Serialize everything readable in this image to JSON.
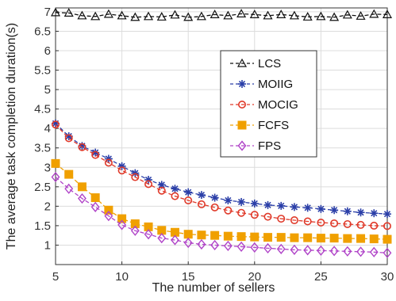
{
  "chart_data": {
    "type": "line",
    "xlabel": "The number of sellers",
    "ylabel": "The average task completion duration(s)",
    "xlim": [
      5,
      30
    ],
    "ylim": [
      0.5,
      7.1
    ],
    "xticks": [
      5,
      10,
      15,
      20,
      25,
      30
    ],
    "yticks": [
      1,
      1.5,
      2,
      2.5,
      3,
      3.5,
      4,
      4.5,
      5,
      5.5,
      6,
      6.5,
      7
    ],
    "grid": true,
    "legend_position": "top-right",
    "x": [
      5,
      6,
      7,
      8,
      9,
      10,
      11,
      12,
      13,
      14,
      15,
      16,
      17,
      18,
      19,
      20,
      21,
      22,
      23,
      24,
      25,
      26,
      27,
      28,
      29,
      30
    ],
    "series": [
      {
        "name": "LCS",
        "color": "#111111",
        "marker": "triangle",
        "line": "dashed",
        "values": [
          6.98,
          6.97,
          6.9,
          6.88,
          6.94,
          6.9,
          6.86,
          6.88,
          6.87,
          6.92,
          6.86,
          6.88,
          6.93,
          6.9,
          6.95,
          6.93,
          6.9,
          6.93,
          6.9,
          6.87,
          6.88,
          6.86,
          6.92,
          6.89,
          6.94,
          6.93
        ]
      },
      {
        "name": "MOIIG",
        "color": "#2b3fa8",
        "marker": "asterisk",
        "line": "dashed",
        "values": [
          4.13,
          3.8,
          3.55,
          3.38,
          3.22,
          3.03,
          2.85,
          2.68,
          2.55,
          2.45,
          2.36,
          2.29,
          2.22,
          2.15,
          2.11,
          2.07,
          2.03,
          2.01,
          1.98,
          1.96,
          1.93,
          1.9,
          1.87,
          1.84,
          1.82,
          1.8
        ]
      },
      {
        "name": "MOCIG",
        "color": "#e03a2a",
        "marker": "circle",
        "line": "dashed",
        "values": [
          4.1,
          3.75,
          3.52,
          3.32,
          3.12,
          2.92,
          2.75,
          2.57,
          2.4,
          2.26,
          2.15,
          2.05,
          1.97,
          1.89,
          1.83,
          1.78,
          1.73,
          1.68,
          1.64,
          1.61,
          1.58,
          1.56,
          1.54,
          1.52,
          1.5,
          1.49
        ]
      },
      {
        "name": "FCFS",
        "color": "#f0a000",
        "marker": "square",
        "line": "dashed",
        "values": [
          3.1,
          2.82,
          2.5,
          2.22,
          1.9,
          1.68,
          1.55,
          1.47,
          1.38,
          1.33,
          1.28,
          1.26,
          1.25,
          1.23,
          1.22,
          1.21,
          1.2,
          1.2,
          1.19,
          1.19,
          1.18,
          1.18,
          1.17,
          1.17,
          1.16,
          1.15
        ]
      },
      {
        "name": "FPS",
        "color": "#b044c8",
        "marker": "diamond",
        "line": "dashed",
        "values": [
          2.75,
          2.45,
          2.2,
          1.98,
          1.75,
          1.52,
          1.37,
          1.28,
          1.18,
          1.13,
          1.06,
          1.02,
          1.0,
          0.98,
          0.96,
          0.94,
          0.92,
          0.9,
          0.88,
          0.87,
          0.86,
          0.85,
          0.84,
          0.83,
          0.82,
          0.8
        ]
      }
    ]
  }
}
